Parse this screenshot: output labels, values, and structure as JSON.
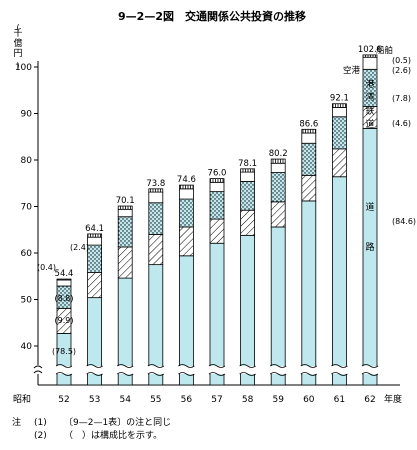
{
  "chart_data": {
    "type": "bar",
    "title": "9—2—2図　交通関係公共投資の推移",
    "ylabel": "千億円",
    "ylim": [
      40,
      100
    ],
    "yticks": [
      "40",
      "50",
      "60",
      "70",
      "80",
      "90",
      "100"
    ],
    "x_prefix": "昭和",
    "x_suffix": "年度",
    "categories": [
      "52",
      "53",
      "54",
      "55",
      "56",
      "57",
      "58",
      "59",
      "60",
      "61",
      "62"
    ],
    "totals": [
      54.4,
      64.1,
      70.1,
      73.8,
      74.6,
      76.0,
      78.1,
      80.2,
      86.6,
      92.1,
      102.6
    ],
    "total_labels": [
      "54.4",
      "64.1",
      "70.1",
      "73.8",
      "74.6",
      "76.0",
      "78.1",
      "80.2",
      "86.6",
      "92.1",
      "102.6"
    ],
    "series": [
      {
        "name": "道路",
        "pct_last": "(84.6)",
        "pct_first": "(78.5)",
        "values": [
          42.7,
          50.4,
          54.6,
          57.5,
          59.4,
          62.1,
          63.8,
          65.6,
          71.2,
          76.4,
          86.8
        ]
      },
      {
        "name": "鉄道",
        "pct_last": "(4.6)",
        "pct_first": "(9.9)",
        "values": [
          5.4,
          5.4,
          6.7,
          6.5,
          6.2,
          5.2,
          5.4,
          5.4,
          5.5,
          6.0,
          4.7
        ]
      },
      {
        "name": "港湾",
        "pct_last": "(7.8)",
        "pct_first": "(8.8)",
        "values": [
          4.8,
          5.9,
          6.5,
          6.8,
          6.0,
          5.9,
          6.2,
          6.3,
          6.9,
          6.9,
          8.0
        ]
      },
      {
        "name": "空港",
        "pct_last": "(2.6)",
        "pct_first": "(2.4)",
        "values": [
          1.3,
          1.7,
          1.6,
          2.3,
          2.2,
          2.0,
          2.0,
          2.0,
          2.2,
          2.0,
          2.6
        ]
      },
      {
        "name": "船舶",
        "pct_last": "(0.5)",
        "pct_first": "(0.4)",
        "values": [
          0.2,
          0.7,
          0.7,
          0.7,
          0.8,
          0.8,
          0.7,
          0.9,
          0.8,
          0.8,
          0.5
        ]
      }
    ],
    "colors": {
      "road": "#bfe8ee",
      "rail": "#ffffff",
      "port": "#bfe8ee",
      "airport": "#ffffff",
      "ship": "#ffffff",
      "stroke": "#000000"
    },
    "grid": false,
    "legend": "inline-labels"
  },
  "notes": {
    "lead": "注",
    "items": [
      {
        "num": "(1)",
        "text": "〔9—2—1表〕の注と同じ"
      },
      {
        "num": "(2)",
        "text": "（　）は構成比を示す。"
      }
    ]
  }
}
